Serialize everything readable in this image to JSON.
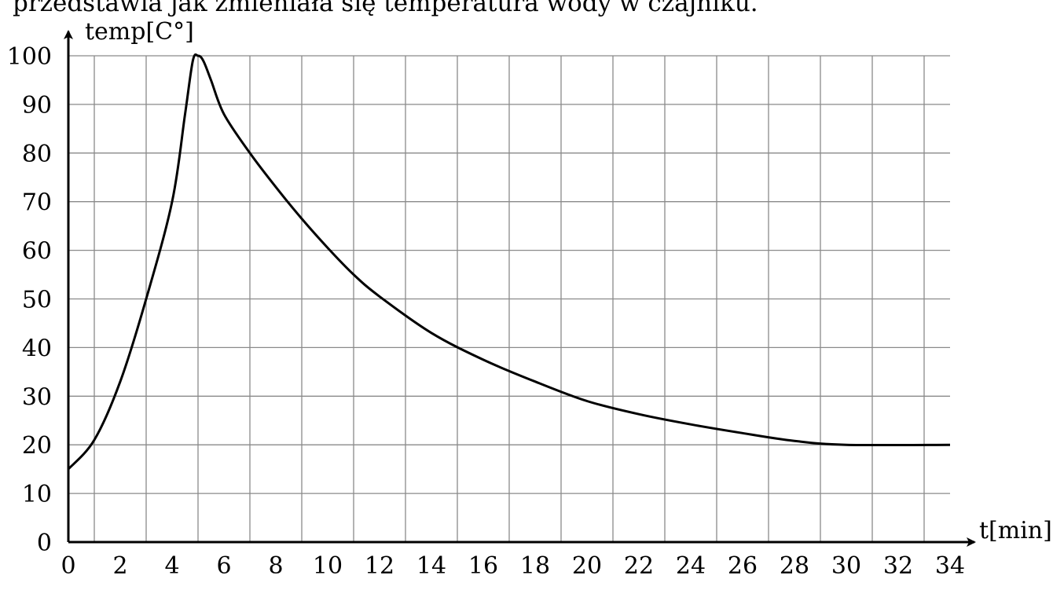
{
  "caption": "przedstawia jak zmieniała się temperatura wody w czajniku.",
  "chart_data": {
    "type": "line",
    "ylabel": "temp[C°]",
    "xlabel": "t[min]",
    "xlim": [
      0,
      34
    ],
    "ylim": [
      0,
      100
    ],
    "grid": true,
    "x_ticks": [
      0,
      2,
      4,
      6,
      8,
      10,
      12,
      14,
      16,
      18,
      20,
      22,
      24,
      26,
      28,
      30,
      32,
      34
    ],
    "y_ticks": [
      0,
      10,
      20,
      30,
      40,
      50,
      60,
      70,
      80,
      90,
      100
    ],
    "series": [
      {
        "x": [
          0,
          1,
          2,
          3,
          4,
          4.5,
          4.8,
          5,
          5.2,
          5.5,
          6,
          7,
          8,
          9,
          10,
          11,
          12,
          14,
          16,
          18,
          20,
          22,
          24,
          26,
          28,
          30,
          34
        ],
        "y": [
          15,
          21,
          33,
          50,
          70,
          88,
          99,
          100,
          99,
          95,
          88,
          80,
          73,
          66.5,
          60.5,
          55,
          50.5,
          43,
          37.5,
          33,
          29,
          26.3,
          24.2,
          22.4,
          20.8,
          20,
          20
        ]
      }
    ]
  }
}
